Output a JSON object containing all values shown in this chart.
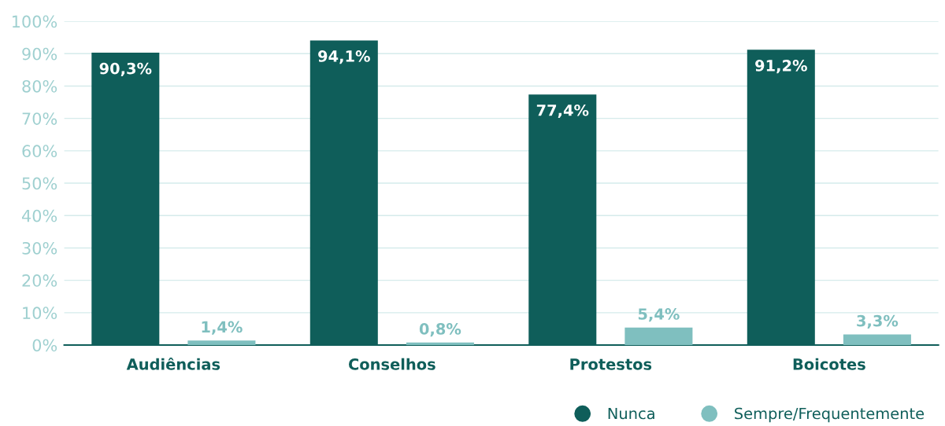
{
  "chart_data": {
    "type": "bar",
    "categories": [
      "Audiências",
      "Conselhos",
      "Protestos",
      "Boicotes"
    ],
    "series": [
      {
        "name": "Nunca",
        "color": "#0f5e5a",
        "values": [
          90.3,
          94.1,
          77.4,
          91.2
        ],
        "value_labels": [
          "90,3%",
          "94,1%",
          "77,4%",
          "91,2%"
        ]
      },
      {
        "name": "Sempre/Frequentemente",
        "color": "#7fbfbf",
        "values": [
          1.4,
          0.8,
          5.4,
          3.3
        ],
        "value_labels": [
          "1,4%",
          "0,8%",
          "5,4%",
          "3,3%"
        ]
      }
    ],
    "ylim": [
      0,
      100
    ],
    "yticks": [
      {
        "value": 0,
        "label": "0%"
      },
      {
        "value": 10,
        "label": "10%"
      },
      {
        "value": 20,
        "label": "20%"
      },
      {
        "value": 30,
        "label": "30%"
      },
      {
        "value": 40,
        "label": "40%"
      },
      {
        "value": 50,
        "label": "50%"
      },
      {
        "value": 60,
        "label": "60%"
      },
      {
        "value": 70,
        "label": "70%"
      },
      {
        "value": 80,
        "label": "80%"
      },
      {
        "value": 90,
        "label": "90%"
      },
      {
        "value": 100,
        "label": "100%"
      }
    ],
    "grid": "y",
    "legend": "bottom right"
  }
}
